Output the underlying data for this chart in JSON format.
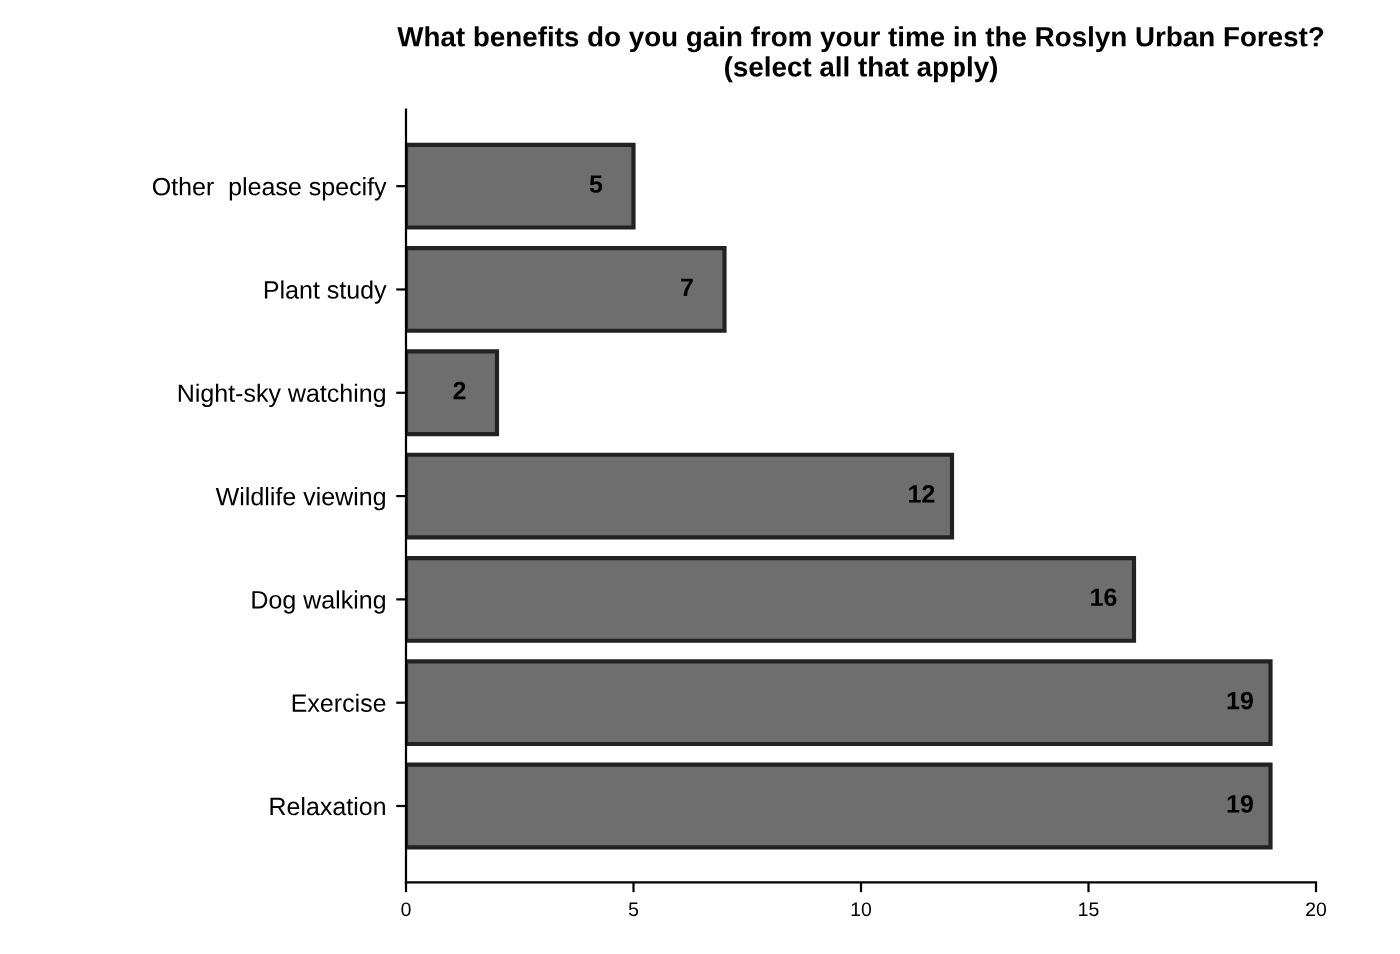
{
  "chart_data": {
    "type": "bar",
    "orientation": "horizontal",
    "title": "What benefits do you gain from your time in the Roslyn Urban Forest?\n(select all that apply)",
    "categories": [
      "Other  please specify",
      "Plant study",
      "Night-sky watching",
      "Wildlife viewing",
      "Dog walking",
      "Exercise",
      "Relaxation"
    ],
    "values": [
      5,
      7,
      2,
      12,
      16,
      19,
      19
    ],
    "color": "#6e6e6e",
    "xlim": [
      0,
      20
    ],
    "xticks": [
      0,
      5,
      10,
      15,
      20
    ],
    "data_labels": true,
    "grid": false
  }
}
